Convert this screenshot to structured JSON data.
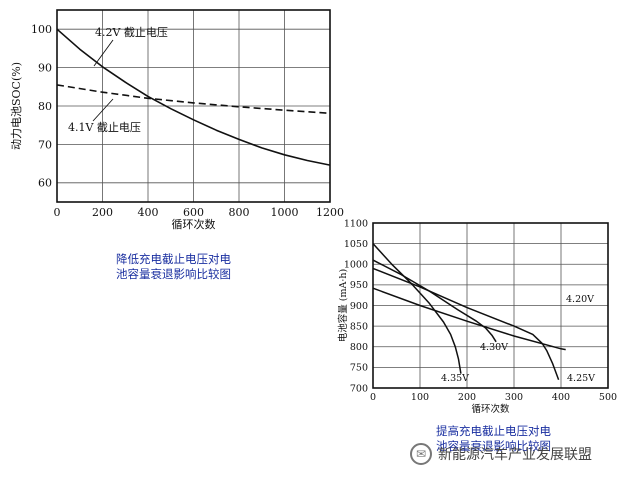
{
  "chart_data": [
    {
      "type": "line",
      "title": "",
      "xlabel": "循环次数",
      "ylabel": "动力电池SOC(%)",
      "xlim": [
        0,
        1200
      ],
      "ylim": [
        55,
        105
      ],
      "xticks": [
        0,
        200,
        400,
        600,
        800,
        1000,
        1200
      ],
      "yticks": [
        60,
        70,
        80,
        90,
        100
      ],
      "grid": true,
      "caption": [
        "降低充电截止电压对电",
        "池容量衰退影响比较图"
      ],
      "series": [
        {
          "name": "4.2V 截止电压",
          "style": "solid",
          "x": [
            0,
            100,
            200,
            300,
            400,
            500,
            600,
            700,
            800,
            900,
            1000,
            1100,
            1200
          ],
          "y": [
            100,
            94.8,
            90.2,
            86.2,
            82.5,
            79.3,
            76.4,
            73.7,
            71.3,
            69.1,
            67.3,
            65.8,
            64.6
          ]
        },
        {
          "name": "4.1V 截止电压",
          "style": "dashed",
          "x": [
            0,
            200,
            400,
            600,
            800,
            1000,
            1200
          ],
          "y": [
            85.5,
            83.6,
            82.0,
            80.8,
            79.8,
            78.9,
            78.1
          ]
        }
      ]
    },
    {
      "type": "line",
      "title": "",
      "xlabel": "循环次数",
      "ylabel": "电池容量 (mA·h)",
      "xlim": [
        0,
        500
      ],
      "ylim": [
        700,
        1100
      ],
      "xticks": [
        0,
        100,
        200,
        300,
        400,
        500
      ],
      "yticks": [
        700,
        750,
        800,
        850,
        900,
        950,
        1000,
        1050,
        1100
      ],
      "grid": true,
      "caption": [
        "提高充电截止电压对电",
        "池容量衰退影响比较图"
      ],
      "series": [
        {
          "name": "4.20V",
          "style": "solid",
          "x": [
            0,
            100,
            200,
            300,
            400,
            410
          ],
          "y": [
            942,
            900,
            862,
            826,
            795,
            793
          ]
        },
        {
          "name": "4.25V",
          "style": "solid",
          "x": [
            0,
            100,
            200,
            300,
            340,
            360,
            370,
            382,
            395
          ],
          "y": [
            990,
            945,
            895,
            850,
            830,
            808,
            790,
            760,
            720
          ]
        },
        {
          "name": "4.30V",
          "style": "solid",
          "x": [
            0,
            60,
            120,
            180,
            220,
            240,
            253,
            262
          ],
          "y": [
            1010,
            975,
            935,
            890,
            862,
            845,
            828,
            812
          ]
        },
        {
          "name": "4.35V",
          "style": "solid",
          "x": [
            0,
            40,
            80,
            120,
            150,
            165,
            175,
            182,
            187
          ],
          "y": [
            1050,
            1000,
            955,
            905,
            860,
            830,
            800,
            770,
            735
          ]
        }
      ]
    }
  ],
  "watermark": {
    "icon": "wechat-icon",
    "text": "新能源汽车产业发展联盟"
  }
}
